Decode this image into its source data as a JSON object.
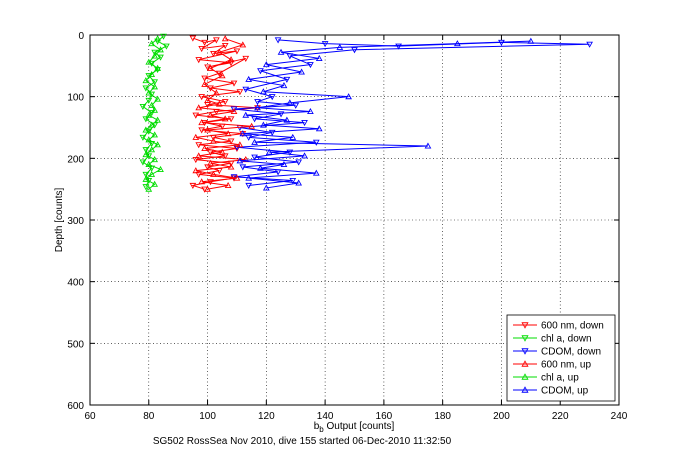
{
  "chart_data": {
    "type": "line",
    "title": "",
    "xlabel": "b_b Output [counts]",
    "xlabel_main": "b",
    "xlabel_sub": "b",
    "xlabel_rest": " Output [counts]",
    "ylabel": "Depth [counts]",
    "xlim": [
      60,
      240
    ],
    "ylim": [
      0,
      600
    ],
    "y_reversed": true,
    "xticks": [
      60,
      80,
      100,
      120,
      140,
      160,
      180,
      200,
      220,
      240
    ],
    "yticks": [
      0,
      100,
      200,
      300,
      400,
      500,
      600
    ],
    "grid": true,
    "legend_location": "bottom-right",
    "footer": "SG502 RossSea Nov 2010, dive 155 started 06-Dec-2010 11:32:50",
    "series": [
      {
        "name": "600 nm, down",
        "color": "#ff0000",
        "marker": "triangle-down",
        "points": [
          [
            95,
            5
          ],
          [
            99,
            12
          ],
          [
            103,
            8
          ],
          [
            98,
            22
          ],
          [
            106,
            17
          ],
          [
            102,
            30
          ],
          [
            110,
            26
          ],
          [
            97,
            40
          ],
          [
            108,
            45
          ],
          [
            100,
            52
          ],
          [
            113,
            38
          ],
          [
            104,
            62
          ],
          [
            99,
            70
          ],
          [
            109,
            78
          ],
          [
            101,
            86
          ],
          [
            111,
            92
          ],
          [
            98,
            100
          ],
          [
            106,
            108
          ],
          [
            100,
            113
          ],
          [
            117,
            118
          ],
          [
            103,
            124
          ],
          [
            96,
            130
          ],
          [
            108,
            136
          ],
          [
            99,
            142
          ],
          [
            105,
            148
          ],
          [
            98,
            154
          ],
          [
            112,
            160
          ],
          [
            102,
            166
          ],
          [
            108,
            172
          ],
          [
            97,
            178
          ],
          [
            110,
            184
          ],
          [
            101,
            190
          ],
          [
            106,
            196
          ],
          [
            96,
            202
          ],
          [
            108,
            208
          ],
          [
            100,
            214
          ],
          [
            104,
            220
          ],
          [
            97,
            226
          ],
          [
            109,
            232
          ],
          [
            101,
            238
          ],
          [
            95,
            244
          ],
          [
            99,
            250
          ]
        ]
      },
      {
        "name": "chl a, down",
        "color": "#00dd00",
        "marker": "triangle-down",
        "points": [
          [
            85,
            2
          ],
          [
            83,
            10
          ],
          [
            86,
            18
          ],
          [
            82,
            28
          ],
          [
            84,
            36
          ],
          [
            81,
            46
          ],
          [
            83,
            56
          ],
          [
            80,
            66
          ],
          [
            82,
            76
          ],
          [
            79,
            86
          ],
          [
            81,
            96
          ],
          [
            80,
            106
          ],
          [
            78,
            116
          ],
          [
            81,
            126
          ],
          [
            79,
            136
          ],
          [
            82,
            146
          ],
          [
            80,
            156
          ],
          [
            78,
            166
          ],
          [
            81,
            176
          ],
          [
            79,
            186
          ],
          [
            80,
            196
          ],
          [
            78,
            206
          ],
          [
            81,
            216
          ],
          [
            79,
            226
          ],
          [
            80,
            236
          ],
          [
            79,
            246
          ]
        ]
      },
      {
        "name": "CDOM, down",
        "color": "#0000ff",
        "marker": "triangle-down",
        "points": [
          [
            124,
            8
          ],
          [
            140,
            14
          ],
          [
            165,
            18
          ],
          [
            200,
            12
          ],
          [
            230,
            15
          ],
          [
            150,
            24
          ],
          [
            128,
            34
          ],
          [
            135,
            48
          ],
          [
            118,
            58
          ],
          [
            127,
            72
          ],
          [
            113,
            88
          ],
          [
            122,
            100
          ],
          [
            117,
            108
          ],
          [
            130,
            114
          ],
          [
            109,
            120
          ],
          [
            125,
            128
          ],
          [
            116,
            136
          ],
          [
            133,
            142
          ],
          [
            111,
            150
          ],
          [
            122,
            158
          ],
          [
            114,
            166
          ],
          [
            137,
            174
          ],
          [
            110,
            182
          ],
          [
            128,
            190
          ],
          [
            116,
            198
          ],
          [
            131,
            206
          ],
          [
            112,
            214
          ],
          [
            124,
            222
          ],
          [
            109,
            230
          ],
          [
            129,
            236
          ],
          [
            114,
            244
          ]
        ]
      },
      {
        "name": "600 nm, up",
        "color": "#ff0000",
        "marker": "triangle-up",
        "points": [
          [
            100,
            250
          ],
          [
            107,
            244
          ],
          [
            98,
            238
          ],
          [
            110,
            232
          ],
          [
            102,
            226
          ],
          [
            96,
            220
          ],
          [
            108,
            214
          ],
          [
            101,
            208
          ],
          [
            113,
            202
          ],
          [
            97,
            196
          ],
          [
            105,
            190
          ],
          [
            99,
            184
          ],
          [
            111,
            178
          ],
          [
            102,
            172
          ],
          [
            96,
            166
          ],
          [
            107,
            160
          ],
          [
            100,
            154
          ],
          [
            115,
            148
          ],
          [
            98,
            142
          ],
          [
            106,
            136
          ],
          [
            101,
            130
          ],
          [
            109,
            124
          ],
          [
            97,
            118
          ],
          [
            104,
            112
          ],
          [
            100,
            106
          ],
          [
            103,
            94
          ],
          [
            99,
            80
          ],
          [
            105,
            66
          ],
          [
            101,
            54
          ],
          [
            108,
            40
          ],
          [
            104,
            28
          ],
          [
            112,
            16
          ],
          [
            106,
            6
          ]
        ]
      },
      {
        "name": "chl a, up",
        "color": "#00dd00",
        "marker": "triangle-up",
        "points": [
          [
            80,
            250
          ],
          [
            82,
            242
          ],
          [
            79,
            234
          ],
          [
            81,
            226
          ],
          [
            84,
            218
          ],
          [
            80,
            210
          ],
          [
            82,
            202
          ],
          [
            79,
            194
          ],
          [
            81,
            186
          ],
          [
            83,
            178
          ],
          [
            80,
            170
          ],
          [
            82,
            162
          ],
          [
            79,
            154
          ],
          [
            81,
            146
          ],
          [
            83,
            138
          ],
          [
            80,
            130
          ],
          [
            82,
            122
          ],
          [
            81,
            114
          ],
          [
            83,
            104
          ],
          [
            80,
            94
          ],
          [
            82,
            84
          ],
          [
            79,
            74
          ],
          [
            81,
            64
          ],
          [
            83,
            54
          ],
          [
            80,
            44
          ],
          [
            82,
            34
          ],
          [
            84,
            24
          ],
          [
            81,
            14
          ],
          [
            83,
            6
          ]
        ]
      },
      {
        "name": "CDOM, up",
        "color": "#0000ff",
        "marker": "triangle-up",
        "points": [
          [
            120,
            248
          ],
          [
            131,
            240
          ],
          [
            114,
            232
          ],
          [
            137,
            224
          ],
          [
            118,
            216
          ],
          [
            126,
            210
          ],
          [
            111,
            204
          ],
          [
            133,
            196
          ],
          [
            121,
            190
          ],
          [
            175,
            180
          ],
          [
            116,
            174
          ],
          [
            129,
            166
          ],
          [
            112,
            160
          ],
          [
            138,
            152
          ],
          [
            119,
            146
          ],
          [
            127,
            138
          ],
          [
            113,
            130
          ],
          [
            135,
            124
          ],
          [
            117,
            118
          ],
          [
            128,
            110
          ],
          [
            148,
            100
          ],
          [
            119,
            92
          ],
          [
            126,
            82
          ],
          [
            114,
            72
          ],
          [
            132,
            60
          ],
          [
            120,
            48
          ],
          [
            138,
            38
          ],
          [
            125,
            28
          ],
          [
            145,
            20
          ],
          [
            185,
            14
          ],
          [
            210,
            10
          ]
        ]
      }
    ]
  }
}
